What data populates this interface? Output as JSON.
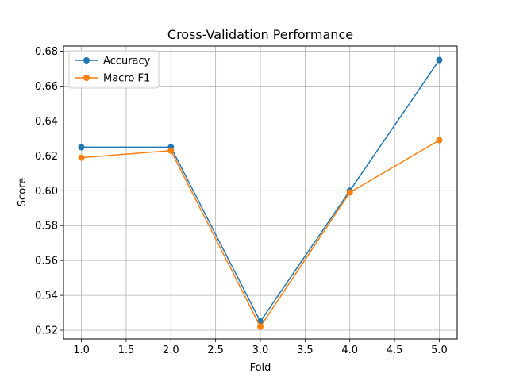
{
  "chart_data": {
    "type": "line",
    "title": "Cross-Validation Performance",
    "xlabel": "Fold",
    "ylabel": "Score",
    "x": [
      1,
      2,
      3,
      4,
      5
    ],
    "xlim": [
      0.8,
      5.2
    ],
    "ylim": [
      0.515,
      0.683
    ],
    "xticks": [
      "1.0",
      "1.5",
      "2.0",
      "2.5",
      "3.0",
      "3.5",
      "4.0",
      "4.5",
      "5.0"
    ],
    "yticks": [
      "0.52",
      "0.54",
      "0.56",
      "0.58",
      "0.60",
      "0.62",
      "0.64",
      "0.66",
      "0.68"
    ],
    "grid": true,
    "legend_position": "top-left",
    "series": [
      {
        "name": "Accuracy",
        "color": "#1f77b4",
        "values": [
          0.625,
          0.625,
          0.525,
          0.6,
          0.675
        ]
      },
      {
        "name": "Macro F1",
        "color": "#ff7f0e",
        "values": [
          0.619,
          0.623,
          0.522,
          0.599,
          0.629
        ]
      }
    ]
  }
}
